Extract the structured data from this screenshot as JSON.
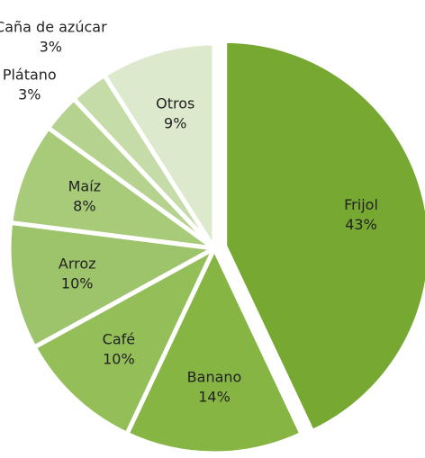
{
  "chart_data": {
    "type": "pie",
    "categories": [
      "Frijol",
      "Banano",
      "Café",
      "Arroz",
      "Maíz",
      "Plátano",
      "Caña de azúcar",
      "Otros"
    ],
    "values": [
      43,
      14,
      10,
      10,
      8,
      3,
      3,
      9
    ],
    "value_labels": [
      "43%",
      "14%",
      "10%",
      "10%",
      "8%",
      "3%",
      "3%",
      "9%"
    ],
    "colors": [
      "#76a832",
      "#86b544",
      "#93be58",
      "#9dc46a",
      "#a8cb7a",
      "#b5d38e",
      "#c6dca8",
      "#dde9cc"
    ]
  }
}
